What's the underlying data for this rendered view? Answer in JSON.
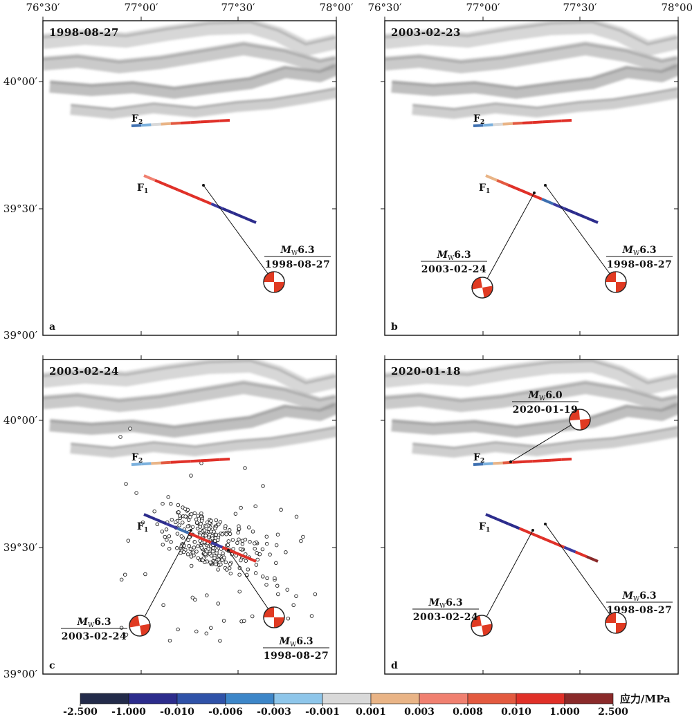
{
  "axis_ticks": {
    "lon_labels": [
      "76°30′",
      "77°00′",
      "77°30′",
      "78°00′"
    ],
    "lat_labels": [
      "40°00′",
      "39°30′",
      "39°00′"
    ]
  },
  "fault_labels": {
    "f1_main": "F",
    "f1_sub": "1",
    "f2_main": "F",
    "f2_sub": "2"
  },
  "panels": [
    {
      "letter": "a",
      "date": "1998-08-27",
      "events": [
        {
          "mag_main": "M",
          "mag_sub": "W",
          "mag_value": "6.3",
          "date": "1998-08-27"
        }
      ],
      "f1_colors": [
        "#f08070",
        "#e03028",
        "#e03028",
        "#e03028",
        "#e03028",
        "#e03028",
        "#3a3aa0",
        "#2c2c8c",
        "#2c2c8c",
        "#2c2c8c"
      ],
      "f2_colors": [
        "#3d6fb0",
        "#7ab0dd",
        "#d9d9d9",
        "#e9b486",
        "#e35a40",
        "#e03028",
        "#e03028",
        "#e03028",
        "#e03028",
        "#e03028"
      ]
    },
    {
      "letter": "b",
      "date": "2003-02-23",
      "events": [
        {
          "mag_main": "M",
          "mag_sub": "W",
          "mag_value": "6.3",
          "date": "2003-02-24"
        },
        {
          "mag_main": "M",
          "mag_sub": "W",
          "mag_value": "6.3",
          "date": "1998-08-27"
        }
      ],
      "f1_colors": [
        "#e9b486",
        "#e35a40",
        "#e03028",
        "#e03028",
        "#e03028",
        "#3d6fb0",
        "#3a3aa0",
        "#2c2c8c",
        "#2c2c8c",
        "#2c2c8c"
      ],
      "f2_colors": [
        "#3d6fb0",
        "#7ab0dd",
        "#d9d9d9",
        "#e9b486",
        "#e35a40",
        "#e03028",
        "#e03028",
        "#e03028",
        "#e03028",
        "#e03028"
      ]
    },
    {
      "letter": "c",
      "date": "2003-02-24",
      "events": [
        {
          "mag_main": "M",
          "mag_sub": "W",
          "mag_value": "6.3",
          "date": "2003-02-24"
        },
        {
          "mag_main": "M",
          "mag_sub": "W",
          "mag_value": "6.3",
          "date": "1998-08-27"
        }
      ],
      "f1_colors": [
        "#2c2c8c",
        "#2c2c8c",
        "#3a3aa0",
        "#3d6fb0",
        "#e03028",
        "#e03028",
        "#3a3aa0",
        "#e03028",
        "#e03028",
        "#e03028"
      ],
      "f2_colors": [
        "#7ab0dd",
        "#7ab0dd",
        "#e9b486",
        "#e35a40",
        "#e03028",
        "#e03028",
        "#e03028",
        "#e03028",
        "#e03028",
        "#e03028"
      ]
    },
    {
      "letter": "d",
      "date": "2020-01-18",
      "events": [
        {
          "mag_main": "M",
          "mag_sub": "W",
          "mag_value": "6.0",
          "date": "2020-01-19"
        },
        {
          "mag_main": "M",
          "mag_sub": "W",
          "mag_value": "6.3",
          "date": "2003-02-24"
        },
        {
          "mag_main": "M",
          "mag_sub": "W",
          "mag_value": "6.3",
          "date": "1998-08-27"
        }
      ],
      "f1_colors": [
        "#2c2c8c",
        "#2c2c8c",
        "#2c2c8c",
        "#e03028",
        "#e03028",
        "#e03028",
        "#e03028",
        "#3a3aa0",
        "#e03028",
        "#8a2a2a"
      ],
      "f2_colors": [
        "#3d6fb0",
        "#7ab0dd",
        "#e9b486",
        "#e35a40",
        "#e03028",
        "#e03028",
        "#e03028",
        "#e03028",
        "#e03028",
        "#e03028"
      ]
    }
  ],
  "colorbar": {
    "unit_label": "应力/MPa",
    "tick_labels": [
      "-2.500",
      "-1.000",
      "-0.010",
      "-0.006",
      "-0.003",
      "-0.001",
      "0.001",
      "0.003",
      "0.008",
      "0.010",
      "1.000",
      "2.500"
    ],
    "colors": [
      "#232b4a",
      "#2c2c8c",
      "#2f52a8",
      "#3d86c8",
      "#8ec6ea",
      "#d9d9d9",
      "#e9b486",
      "#f08070",
      "#e35a40",
      "#e03028",
      "#8a2a2a"
    ]
  },
  "beachball_colors": {
    "fill": "#e03a22",
    "edge": "#222222"
  },
  "aftershock_marker": "open-circle"
}
